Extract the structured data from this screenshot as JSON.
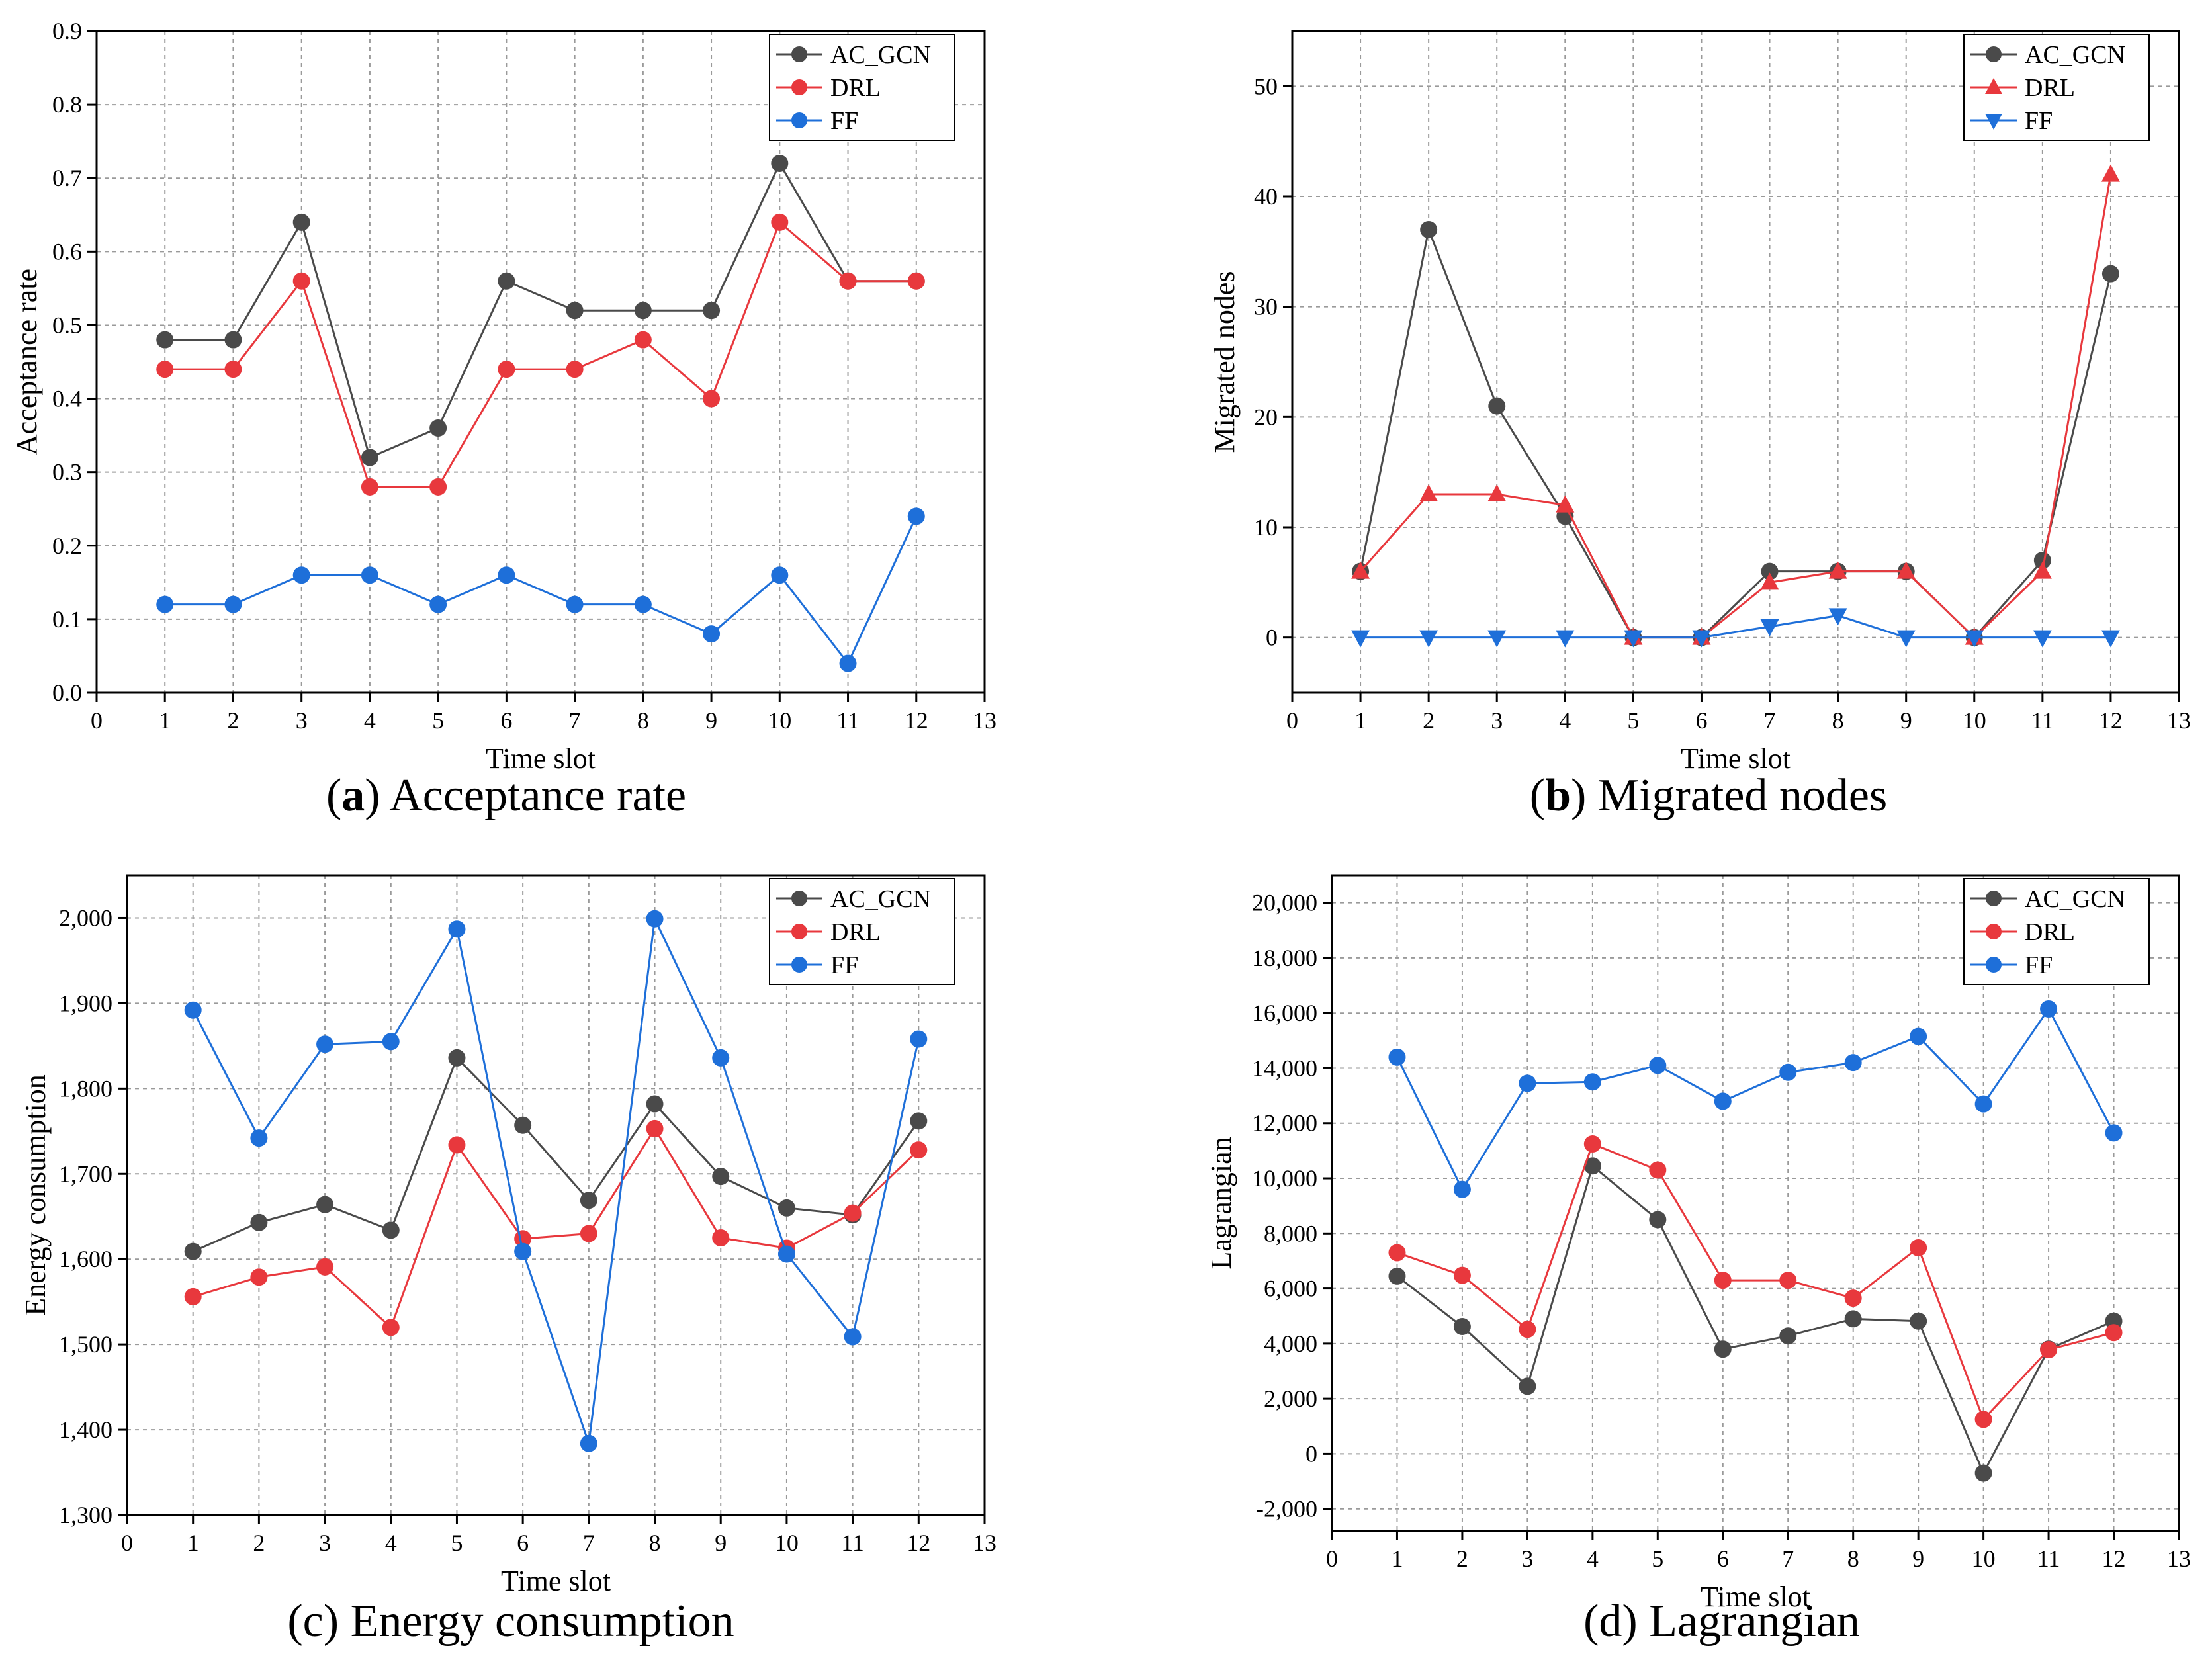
{
  "figure": {
    "panels": [
      {
        "caption_letter": "a",
        "caption_text": " Acceptance rate",
        "caption_letter_bold": true
      },
      {
        "caption_letter": "b",
        "caption_text": " Migrated nodes",
        "caption_letter_bold": true
      },
      {
        "caption_letter": "(c)",
        "caption_text": " Energy consumption",
        "caption_letter_bold": false
      },
      {
        "caption_letter": "(d)",
        "caption_text": " Lagrangian",
        "caption_letter_bold": false
      }
    ]
  },
  "colors": {
    "AC_GCN": "#4a4a4a",
    "DRL": "#e8383d",
    "FF": "#1e6fd9"
  },
  "chart_data": [
    {
      "type": "line",
      "xlabel": "Time slot",
      "ylabel": "Acceptance rate",
      "xlim": [
        0,
        13
      ],
      "ylim": [
        0,
        0.9
      ],
      "xticks": [
        0,
        1,
        2,
        3,
        4,
        5,
        6,
        7,
        8,
        9,
        10,
        11,
        12,
        13
      ],
      "yticks": [
        0,
        0.1,
        0.2,
        0.3,
        0.4,
        0.5,
        0.6,
        0.7,
        0.8,
        0.9
      ],
      "ytick_labels": [
        "0.0",
        "0.1",
        "0.2",
        "0.3",
        "0.4",
        "0.5",
        "0.6",
        "0.7",
        "0.8",
        "0.9"
      ],
      "grid": true,
      "legend_position": "top-right",
      "x": [
        1,
        2,
        3,
        4,
        5,
        6,
        7,
        8,
        9,
        10,
        11,
        12
      ],
      "series": [
        {
          "name": "AC_GCN",
          "marker": "circle",
          "values": [
            0.48,
            0.48,
            0.64,
            0.32,
            0.36,
            0.56,
            0.52,
            0.52,
            0.52,
            0.72,
            0.56,
            0.56
          ]
        },
        {
          "name": "DRL",
          "marker": "circle",
          "values": [
            0.44,
            0.44,
            0.56,
            0.28,
            0.28,
            0.44,
            0.44,
            0.48,
            0.4,
            0.64,
            0.56,
            0.56
          ]
        },
        {
          "name": "FF",
          "marker": "circle",
          "values": [
            0.12,
            0.12,
            0.16,
            0.16,
            0.12,
            0.16,
            0.12,
            0.12,
            0.08,
            0.16,
            0.04,
            0.24
          ]
        }
      ]
    },
    {
      "type": "line",
      "xlabel": "Time slot",
      "ylabel": "Migrated nodes",
      "xlim": [
        0,
        13
      ],
      "ylim": [
        -5,
        55
      ],
      "xticks": [
        0,
        1,
        2,
        3,
        4,
        5,
        6,
        7,
        8,
        9,
        10,
        11,
        12,
        13
      ],
      "yticks": [
        0,
        10,
        20,
        30,
        40,
        50
      ],
      "ytick_labels": [
        "0",
        "10",
        "20",
        "30",
        "40",
        "50"
      ],
      "grid": true,
      "legend_position": "top-right",
      "x": [
        1,
        2,
        3,
        4,
        5,
        6,
        7,
        8,
        9,
        10,
        11,
        12
      ],
      "series": [
        {
          "name": "AC_GCN",
          "marker": "circle",
          "values": [
            6,
            37,
            21,
            11,
            0,
            0,
            6,
            6,
            6,
            0,
            7,
            33
          ]
        },
        {
          "name": "DRL",
          "marker": "triangle-up",
          "values": [
            6,
            13,
            13,
            12,
            0,
            0,
            5,
            6,
            6,
            0,
            6,
            42
          ]
        },
        {
          "name": "FF",
          "marker": "triangle-down",
          "values": [
            0,
            0,
            0,
            0,
            0,
            0,
            1,
            2,
            0,
            0,
            0,
            0
          ]
        }
      ]
    },
    {
      "type": "line",
      "xlabel": "Time slot",
      "ylabel": "Energy consumption",
      "xlim": [
        0,
        13
      ],
      "ylim": [
        1300,
        2050
      ],
      "xticks": [
        0,
        1,
        2,
        3,
        4,
        5,
        6,
        7,
        8,
        9,
        10,
        11,
        12,
        13
      ],
      "yticks": [
        1300,
        1400,
        1500,
        1600,
        1700,
        1800,
        1900,
        2000
      ],
      "ytick_labels": [
        "1,300",
        "1,400",
        "1,500",
        "1,600",
        "1,700",
        "1,800",
        "1,900",
        "2,000"
      ],
      "grid": true,
      "legend_position": "top-right",
      "x": [
        1,
        2,
        3,
        4,
        5,
        6,
        7,
        8,
        9,
        10,
        11,
        12
      ],
      "series": [
        {
          "name": "AC_GCN",
          "marker": "circle",
          "values": [
            1609,
            1643,
            1664,
            1634,
            1836,
            1757,
            1669,
            1782,
            1697,
            1660,
            1652,
            1762
          ]
        },
        {
          "name": "DRL",
          "marker": "circle",
          "values": [
            1556,
            1579,
            1591,
            1520,
            1734,
            1624,
            1630,
            1753,
            1625,
            1613,
            1654,
            1728
          ]
        },
        {
          "name": "FF",
          "marker": "circle",
          "values": [
            1892,
            1742,
            1852,
            1855,
            1987,
            1609,
            1384,
            1999,
            1836,
            1606,
            1509,
            1858
          ]
        }
      ]
    },
    {
      "type": "line",
      "xlabel": "Time slot",
      "ylabel": "Lagrangian",
      "xlim": [
        0,
        13
      ],
      "ylim": [
        -2800,
        21000
      ],
      "xticks": [
        0,
        1,
        2,
        3,
        4,
        5,
        6,
        7,
        8,
        9,
        10,
        11,
        12,
        13
      ],
      "yticks": [
        -2000,
        0,
        2000,
        4000,
        6000,
        8000,
        10000,
        12000,
        14000,
        16000,
        18000,
        20000
      ],
      "ytick_labels": [
        "-2,000",
        "0",
        "2,000",
        "4,000",
        "6,000",
        "8,000",
        "10,000",
        "12,000",
        "14,000",
        "16,000",
        "18,000",
        "20,000"
      ],
      "grid": true,
      "legend_position": "top-right",
      "x": [
        1,
        2,
        3,
        4,
        5,
        6,
        7,
        8,
        9,
        10,
        11,
        12
      ],
      "series": [
        {
          "name": "AC_GCN",
          "marker": "circle",
          "values": [
            6450,
            4620,
            2450,
            10450,
            8500,
            3800,
            4280,
            4900,
            4820,
            -700,
            3800,
            4820
          ]
        },
        {
          "name": "DRL",
          "marker": "circle",
          "values": [
            7300,
            6480,
            4520,
            11250,
            10300,
            6300,
            6300,
            5650,
            7480,
            1250,
            3780,
            4400
          ]
        },
        {
          "name": "FF",
          "marker": "circle",
          "values": [
            14400,
            9600,
            13450,
            13500,
            14100,
            12800,
            13850,
            14200,
            15150,
            12700,
            16150,
            11650
          ]
        }
      ]
    }
  ]
}
